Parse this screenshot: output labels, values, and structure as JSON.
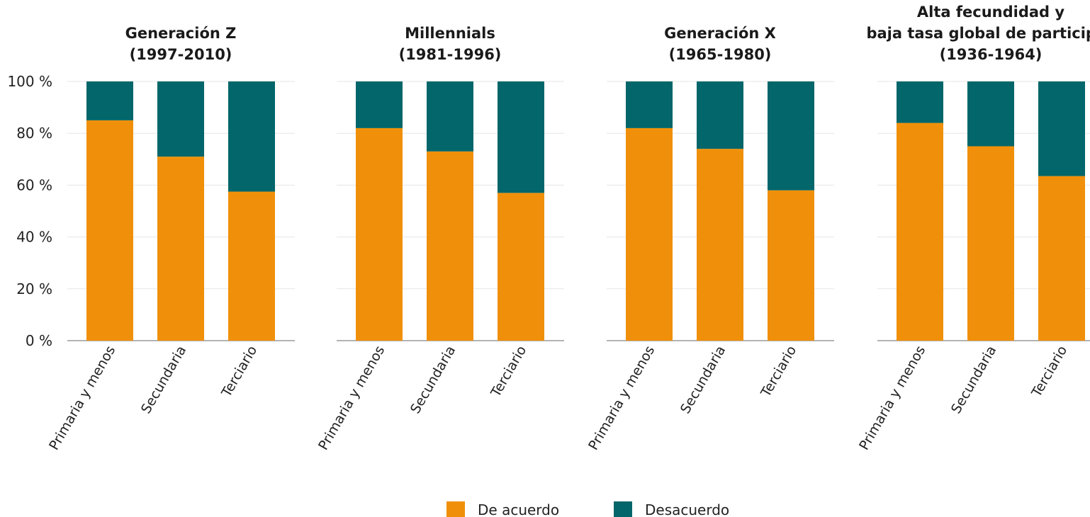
{
  "chart_data": {
    "type": "bar",
    "stacked": true,
    "percent": true,
    "ylim": [
      0,
      100
    ],
    "yticks": [
      0,
      20,
      40,
      60,
      80,
      100
    ],
    "ytick_labels": [
      "0 %",
      "20 %",
      "40 %",
      "60 %",
      "80 %",
      "100 %"
    ],
    "grid": true,
    "legend_position": "bottom-center",
    "legend": [
      {
        "name": "De acuerdo",
        "color": "#F0900A"
      },
      {
        "name": "Desacuerdo",
        "color": "#02666A"
      }
    ],
    "panels": [
      {
        "title_lines": [
          "Generación Z",
          "(1997-2010)"
        ],
        "categories": [
          "Primaria y menos",
          "Secundaria",
          "Terciario"
        ],
        "series": [
          {
            "name": "De acuerdo",
            "values": [
              85,
              71,
              57.5
            ]
          },
          {
            "name": "Desacuerdo",
            "values": [
              15,
              29,
              42.5
            ]
          }
        ]
      },
      {
        "title_lines": [
          "Millennials",
          "(1981-1996)"
        ],
        "categories": [
          "Primaria y menos",
          "Secundaria",
          "Terciario"
        ],
        "series": [
          {
            "name": "De acuerdo",
            "values": [
              82,
              73,
              57
            ]
          },
          {
            "name": "Desacuerdo",
            "values": [
              18,
              27,
              43
            ]
          }
        ]
      },
      {
        "title_lines": [
          "Generación X",
          "(1965-1980)"
        ],
        "categories": [
          "Primaria y menos",
          "Secundaria",
          "Terciario"
        ],
        "series": [
          {
            "name": "De acuerdo",
            "values": [
              82,
              74,
              58
            ]
          },
          {
            "name": "Desacuerdo",
            "values": [
              18,
              26,
              42
            ]
          }
        ]
      },
      {
        "title_lines": [
          "Alta fecundidad y",
          "baja tasa global de participac",
          "(1936-1964)"
        ],
        "categories": [
          "Primaria y menos",
          "Secundaria",
          "Terciario"
        ],
        "series": [
          {
            "name": "De acuerdo",
            "values": [
              84,
              75,
              63.5
            ]
          },
          {
            "name": "Desacuerdo",
            "values": [
              16,
              25,
              36.5
            ]
          }
        ]
      }
    ]
  }
}
